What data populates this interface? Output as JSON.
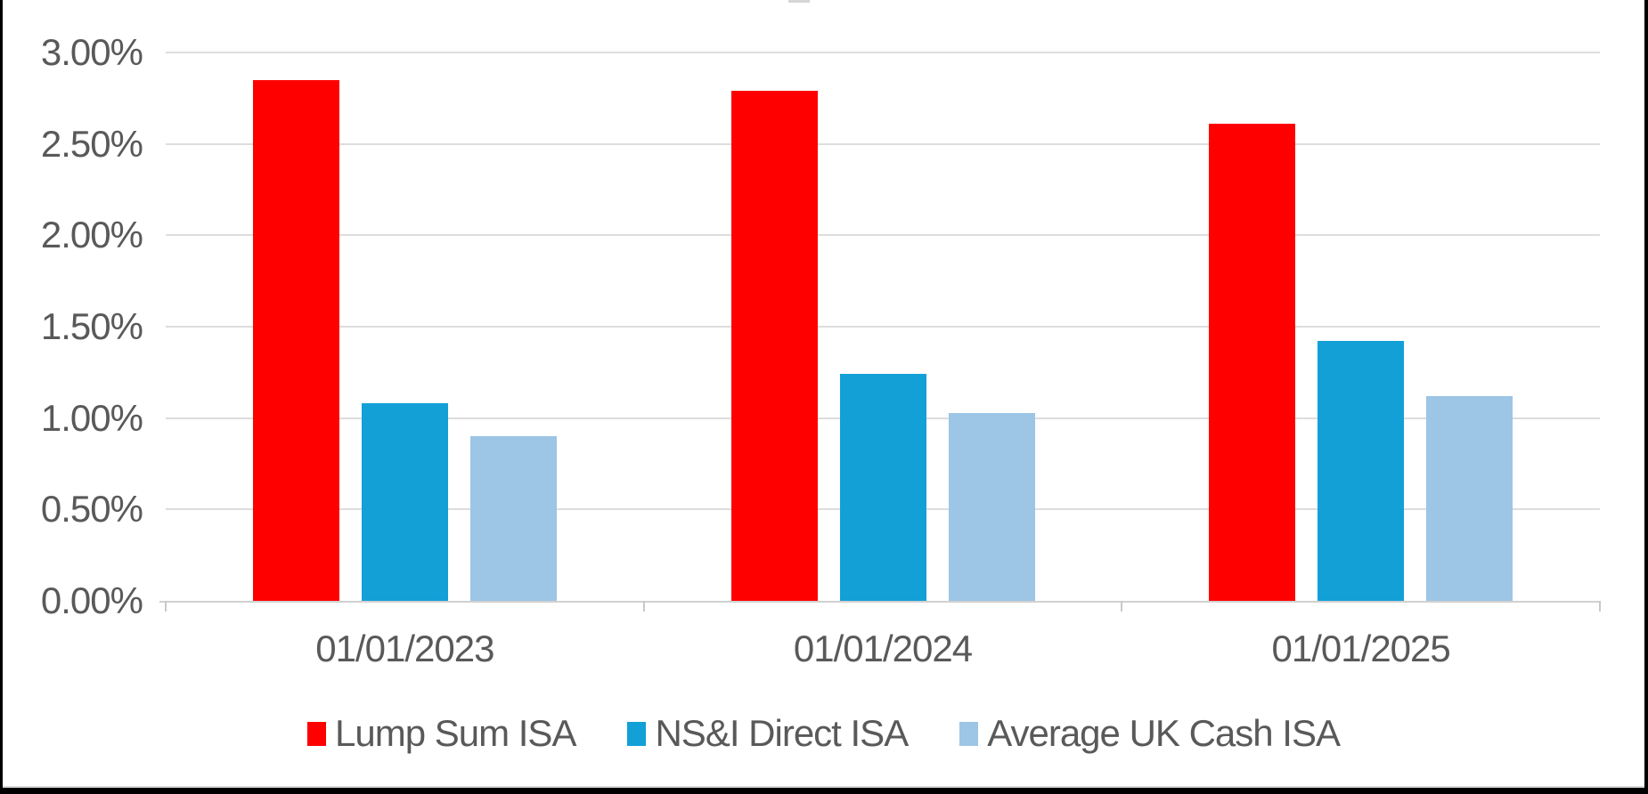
{
  "chart_data": {
    "type": "bar",
    "categories": [
      "01/01/2023",
      "01/01/2024",
      "01/01/2025"
    ],
    "series": [
      {
        "name": "Lump Sum ISA",
        "color": "#ff0000",
        "values": [
          2.85,
          2.79,
          2.61
        ]
      },
      {
        "name": "NS&I Direct ISA",
        "color": "#12a0d7",
        "values": [
          1.08,
          1.24,
          1.42
        ]
      },
      {
        "name": "Average UK Cash ISA",
        "color": "#9cc5e6",
        "values": [
          0.9,
          1.03,
          1.12
        ]
      }
    ],
    "title": "",
    "xlabel": "",
    "ylabel": "",
    "ylim": [
      0,
      3.0
    ],
    "ytick_step": 0.5,
    "yticks": [
      0,
      0.5,
      1.0,
      1.5,
      2.0,
      2.5,
      3.0
    ],
    "ytick_labels": [
      "0.00%",
      "0.50%",
      "1.00%",
      "1.50%",
      "2.00%",
      "2.50%",
      "3.00%"
    ],
    "grid": true,
    "legend_position": "bottom"
  },
  "colors": {
    "axis_text": "#595959",
    "gridline": "#dddddd",
    "axis_line": "#d1d1d1",
    "frame_border": "#000000"
  }
}
